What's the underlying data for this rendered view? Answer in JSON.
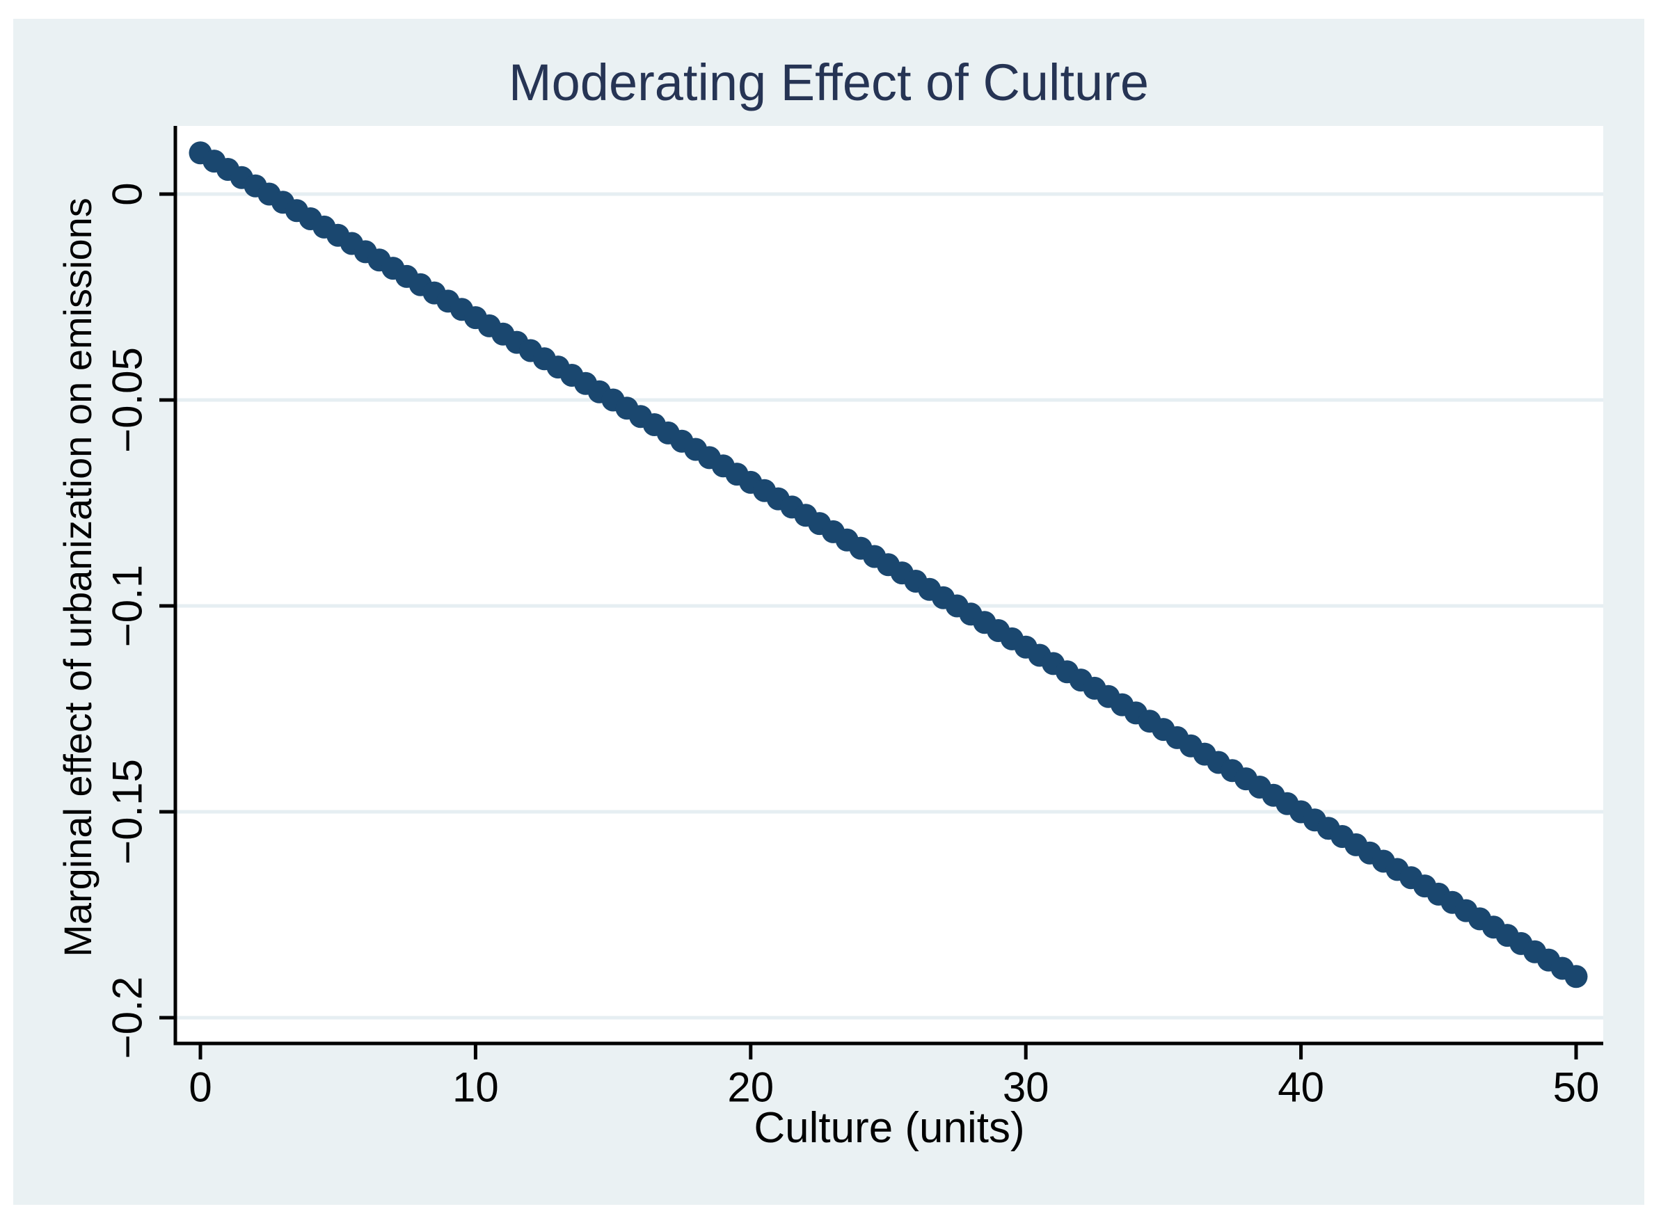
{
  "figure": {
    "background_color": "#eaf1f3",
    "plot_background_color": "#ffffff",
    "gridline_color": "#e6eef2",
    "axis_color": "#000000",
    "tick_label_color": "#000000",
    "title_color": "#263454",
    "marker_color": "#1a476f"
  },
  "chart_data": {
    "type": "scatter",
    "title": "Moderating Effect of Culture",
    "xlabel": "Culture (units)",
    "ylabel": "Marginal effect of urbanization on emissions",
    "xlim": [
      -0.9,
      51
    ],
    "ylim": [
      -0.216,
      0.0215
    ],
    "grid": true,
    "legend": false,
    "x_ticks": [
      0,
      10,
      20,
      30,
      40,
      50
    ],
    "x_tick_labels": [
      "0",
      "10",
      "20",
      "30",
      "40",
      "50"
    ],
    "y_ticks": [
      0,
      -0.05,
      -0.1,
      -0.15,
      -0.2
    ],
    "y_tick_labels": [
      "0",
      "−0.05",
      "−0.1",
      "−0.15",
      "−0.2"
    ],
    "series": [
      {
        "name": "marginal effect of urbanization",
        "marker": "circle",
        "x": [
          0,
          0.5,
          1,
          1.5,
          2,
          2.5,
          3,
          3.5,
          4,
          4.5,
          5,
          5.5,
          6,
          6.5,
          7,
          7.5,
          8,
          8.5,
          9,
          9.5,
          10,
          10.5,
          11,
          11.5,
          12,
          12.5,
          13,
          13.5,
          14,
          14.5,
          15,
          15.5,
          16,
          16.5,
          17,
          17.5,
          18,
          18.5,
          19,
          19.5,
          20,
          20.5,
          21,
          21.5,
          22,
          22.5,
          23,
          23.5,
          24,
          24.5,
          25,
          25.5,
          26,
          26.5,
          27,
          27.5,
          28,
          28.5,
          29,
          29.5,
          30,
          30.5,
          31,
          31.5,
          32,
          32.5,
          33,
          33.5,
          34,
          34.5,
          35,
          35.5,
          36,
          36.5,
          37,
          37.5,
          38,
          38.5,
          39,
          39.5,
          40,
          40.5,
          41,
          41.5,
          42,
          42.5,
          43,
          43.5,
          44,
          44.5,
          45,
          45.5,
          46,
          46.5,
          47,
          47.5,
          48,
          48.5,
          49,
          49.5,
          50
        ],
        "y": [
          0.01,
          0.008,
          0.006,
          0.004,
          0.002,
          0,
          -0.002,
          -0.004,
          -0.006,
          -0.008,
          -0.01,
          -0.012,
          -0.014,
          -0.016,
          -0.018,
          -0.02,
          -0.022,
          -0.024,
          -0.026,
          -0.028,
          -0.03,
          -0.032,
          -0.034,
          -0.036,
          -0.038,
          -0.04,
          -0.042,
          -0.044,
          -0.046,
          -0.048,
          -0.05,
          -0.052,
          -0.054,
          -0.056,
          -0.058,
          -0.06,
          -0.062,
          -0.064,
          -0.066,
          -0.068,
          -0.07,
          -0.072,
          -0.074,
          -0.076,
          -0.078,
          -0.08,
          -0.082,
          -0.084,
          -0.086,
          -0.088,
          -0.09,
          -0.092,
          -0.094,
          -0.096,
          -0.098,
          -0.1,
          -0.102,
          -0.104,
          -0.106,
          -0.108,
          -0.11,
          -0.112,
          -0.114,
          -0.116,
          -0.118,
          -0.12,
          -0.122,
          -0.124,
          -0.126,
          -0.128,
          -0.13,
          -0.132,
          -0.134,
          -0.136,
          -0.138,
          -0.14,
          -0.142,
          -0.144,
          -0.146,
          -0.148,
          -0.15,
          -0.152,
          -0.154,
          -0.156,
          -0.158,
          -0.16,
          -0.162,
          -0.164,
          -0.166,
          -0.168,
          -0.17,
          -0.172,
          -0.174,
          -0.176,
          -0.178,
          -0.18,
          -0.182,
          -0.184,
          -0.186,
          -0.188,
          -0.19
        ]
      }
    ]
  }
}
